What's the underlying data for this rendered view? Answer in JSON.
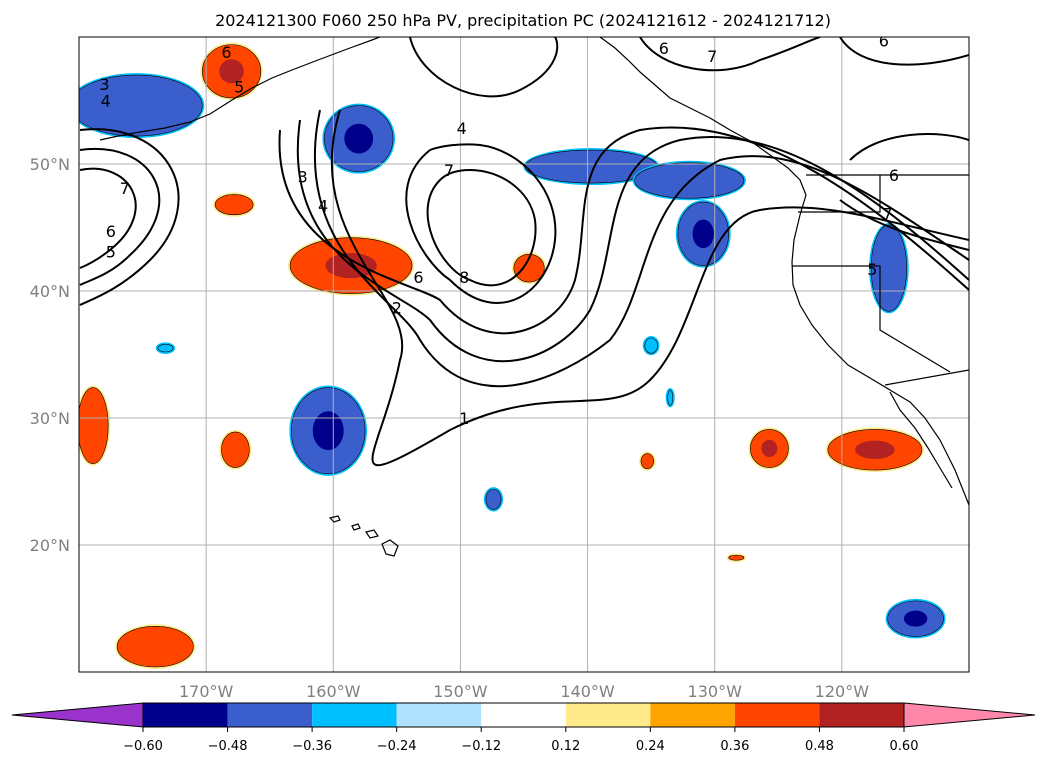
{
  "chart_data": {
    "type": "map-contour",
    "title": "2024121300 F060 250 hPa PV, precipitation PC (2024121612 - 2024121712)",
    "projection": "PlateCarree",
    "lon_range": [
      -180,
      -110
    ],
    "lat_range": [
      10,
      60
    ],
    "grid": true,
    "x_ticks": [
      {
        "value": -170,
        "label": "170°W"
      },
      {
        "value": -160,
        "label": "160°W"
      },
      {
        "value": -150,
        "label": "150°W"
      },
      {
        "value": -140,
        "label": "140°W"
      },
      {
        "value": -130,
        "label": "130°W"
      },
      {
        "value": -120,
        "label": "120°W"
      }
    ],
    "y_ticks": [
      {
        "value": 20,
        "label": "20°N"
      },
      {
        "value": 30,
        "label": "30°N"
      },
      {
        "value": 40,
        "label": "40°N"
      },
      {
        "value": 50,
        "label": "50°N"
      }
    ],
    "colorbar": {
      "orientation": "horizontal",
      "extend": "both",
      "levels": [
        -0.6,
        -0.48,
        -0.36,
        -0.24,
        -0.12,
        0.12,
        0.24,
        0.36,
        0.48,
        0.6
      ],
      "tick_labels": [
        "−0.60",
        "−0.48",
        "−0.36",
        "−0.24",
        "−0.12",
        "0.12",
        "0.24",
        "0.36",
        "0.48",
        "0.60"
      ],
      "colors": [
        "#9933cc",
        "#00008b",
        "#3a5fcd",
        "#00bfff",
        "#b0e2ff",
        "#ffffff",
        "#ffeb8a",
        "#ffa500",
        "#ff4500",
        "#b22222",
        "#ff88aa"
      ]
    },
    "contour_labels": [
      {
        "text": "6",
        "lon": -168.4,
        "lat": 58.7
      },
      {
        "text": "5",
        "lon": -167.4,
        "lat": 56.0
      },
      {
        "text": "6",
        "lon": -134.0,
        "lat": 59.0
      },
      {
        "text": "7",
        "lon": -130.2,
        "lat": 58.4
      },
      {
        "text": "6",
        "lon": -116.7,
        "lat": 59.6
      },
      {
        "text": "3",
        "lon": -178.0,
        "lat": 56.2
      },
      {
        "text": "4",
        "lon": -177.9,
        "lat": 54.9
      },
      {
        "text": "7",
        "lon": -176.4,
        "lat": 48.0
      },
      {
        "text": "6",
        "lon": -177.5,
        "lat": 44.6
      },
      {
        "text": "5",
        "lon": -177.5,
        "lat": 43.0
      },
      {
        "text": "4",
        "lon": -149.9,
        "lat": 52.7
      },
      {
        "text": "7",
        "lon": -150.9,
        "lat": 49.4
      },
      {
        "text": "3",
        "lon": -162.4,
        "lat": 48.9
      },
      {
        "text": "4",
        "lon": -160.8,
        "lat": 46.6
      },
      {
        "text": "6",
        "lon": -153.3,
        "lat": 41.0
      },
      {
        "text": "8",
        "lon": -149.7,
        "lat": 41.0
      },
      {
        "text": "2",
        "lon": -155.0,
        "lat": 38.6
      },
      {
        "text": "1",
        "lon": -149.7,
        "lat": 29.9
      },
      {
        "text": "6",
        "lon": -115.9,
        "lat": 49.0
      },
      {
        "text": "7",
        "lon": -116.4,
        "lat": 46.0
      },
      {
        "text": "5",
        "lon": -117.6,
        "lat": 41.6
      }
    ],
    "precip_anomaly_areas": [
      {
        "lon": -168.0,
        "lat": 57.3,
        "rx": 2.3,
        "ry": 2.1,
        "level": 0.42,
        "core": 0.54
      },
      {
        "lon": -175.5,
        "lat": 54.6,
        "rx": 5.2,
        "ry": 2.4,
        "level": -0.42
      },
      {
        "lon": -158.0,
        "lat": 52.0,
        "rx": 2.7,
        "ry": 2.6,
        "level": -0.42,
        "core": -0.54
      },
      {
        "lon": -139.7,
        "lat": 49.8,
        "rx": 5.2,
        "ry": 1.3,
        "level": -0.42
      },
      {
        "lon": -132.0,
        "lat": 48.7,
        "rx": 4.3,
        "ry": 1.4,
        "level": -0.42
      },
      {
        "lon": -130.9,
        "lat": 44.5,
        "rx": 2.0,
        "ry": 2.5,
        "level": -0.42,
        "core": -0.54
      },
      {
        "lon": -116.3,
        "lat": 41.8,
        "rx": 1.4,
        "ry": 3.4,
        "level": -0.42
      },
      {
        "lon": -167.8,
        "lat": 46.8,
        "rx": 1.5,
        "ry": 0.8,
        "level": 0.42
      },
      {
        "lon": -158.6,
        "lat": 42.0,
        "rx": 4.8,
        "ry": 2.2,
        "level": 0.42,
        "core": 0.54
      },
      {
        "lon": -144.6,
        "lat": 41.8,
        "rx": 1.2,
        "ry": 1.1,
        "level": 0.42
      },
      {
        "lon": -160.4,
        "lat": 29.0,
        "rx": 2.9,
        "ry": 3.4,
        "level": -0.42,
        "core": -0.54
      },
      {
        "lon": -178.9,
        "lat": 29.4,
        "rx": 1.2,
        "ry": 3.0,
        "level": 0.42
      },
      {
        "lon": -167.7,
        "lat": 27.5,
        "rx": 1.1,
        "ry": 1.4,
        "level": 0.42
      },
      {
        "lon": -125.7,
        "lat": 27.6,
        "rx": 1.5,
        "ry": 1.5,
        "level": 0.42,
        "core": 0.54
      },
      {
        "lon": -117.4,
        "lat": 27.5,
        "rx": 3.7,
        "ry": 1.6,
        "level": 0.42,
        "core": 0.54
      },
      {
        "lon": -174.0,
        "lat": 12.0,
        "rx": 3.0,
        "ry": 1.6,
        "level": 0.42
      },
      {
        "lon": -114.2,
        "lat": 14.2,
        "rx": 2.2,
        "ry": 1.4,
        "level": -0.42,
        "core": -0.54
      },
      {
        "lon": -135.3,
        "lat": 26.6,
        "rx": 0.5,
        "ry": 0.6,
        "level": 0.42
      },
      {
        "lon": -128.3,
        "lat": 19.0,
        "rx": 0.6,
        "ry": 0.2,
        "level": 0.42
      },
      {
        "lon": -147.4,
        "lat": 23.6,
        "rx": 0.6,
        "ry": 0.8,
        "level": -0.42
      },
      {
        "lon": -135.0,
        "lat": 35.7,
        "rx": 0.5,
        "ry": 0.6,
        "level": -0.3
      },
      {
        "lon": -133.5,
        "lat": 31.6,
        "rx": 0.2,
        "ry": 0.6,
        "level": -0.3
      },
      {
        "lon": -173.2,
        "lat": 35.5,
        "rx": 0.6,
        "ry": 0.3,
        "level": -0.3
      }
    ]
  }
}
